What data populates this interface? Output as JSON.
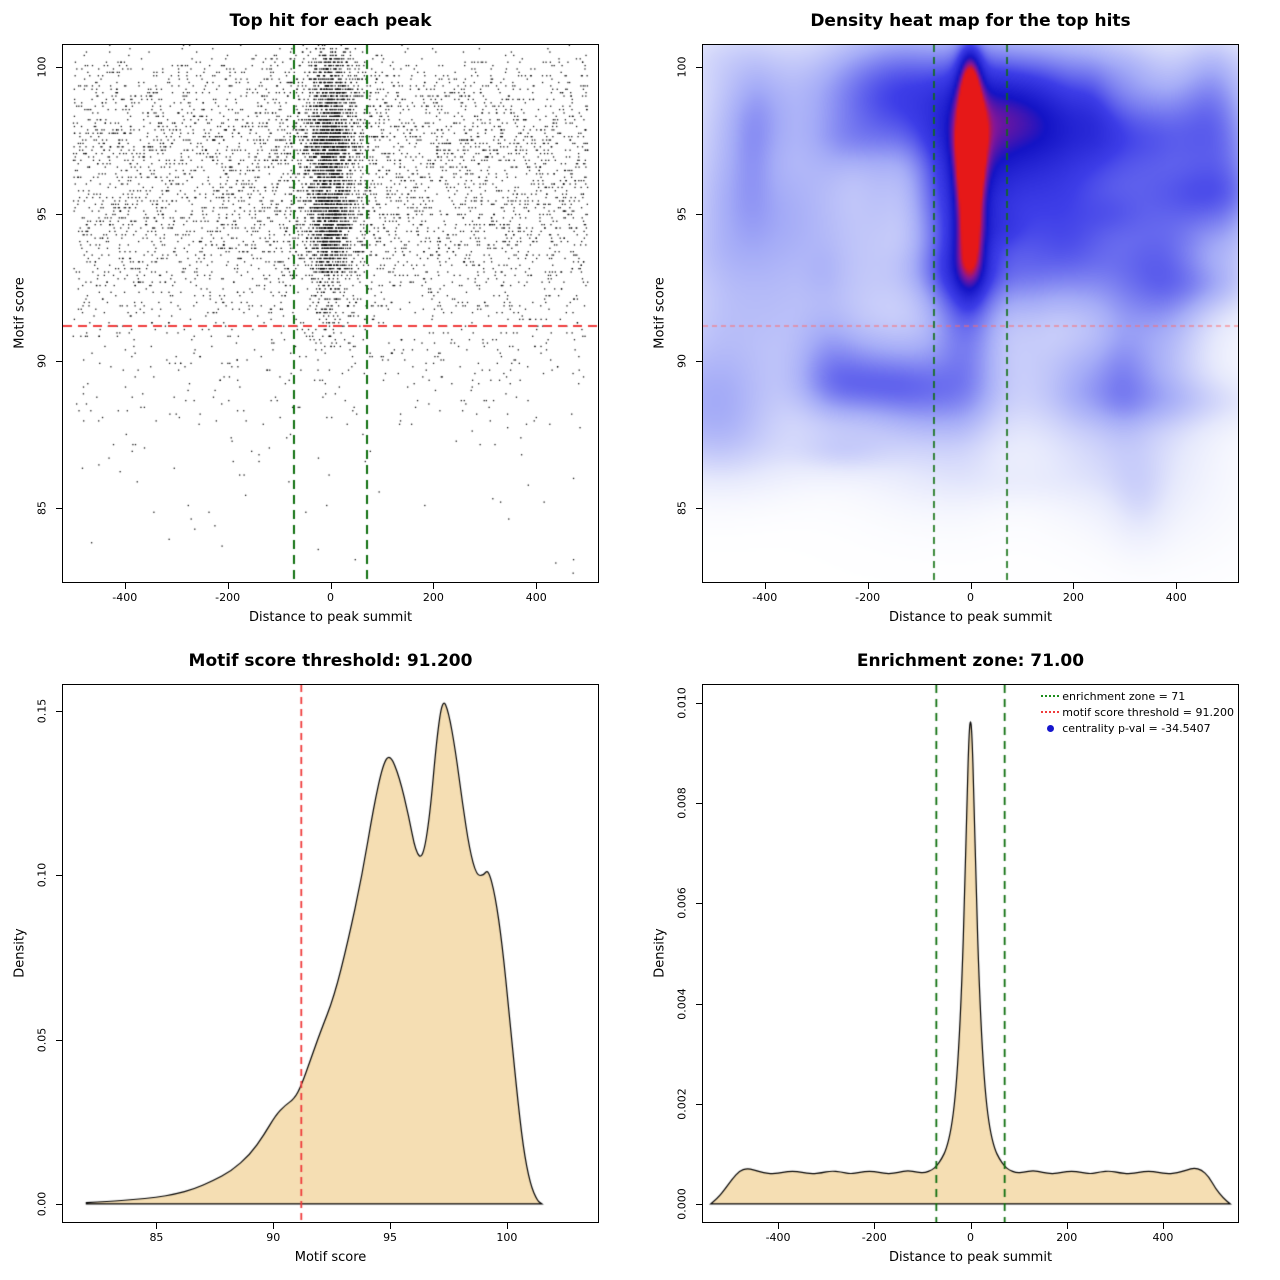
{
  "figure": {
    "background": "#ffffff"
  },
  "chart_data": [
    {
      "type": "scatter",
      "title": "Top hit for each peak",
      "xlabel": "Distance to peak summit",
      "ylabel": "Motif score",
      "xlim": [
        -520,
        520
      ],
      "ylim": [
        82.5,
        100.75
      ],
      "xticks": {
        "values": [
          -400,
          -200,
          0,
          200,
          400
        ],
        "labels": [
          "-400",
          "-200",
          "0",
          "200",
          "400"
        ]
      },
      "yticks": {
        "values": [
          85,
          90,
          95,
          100
        ],
        "labels": [
          "85",
          "90",
          "95",
          "100"
        ]
      },
      "point_color": "#000000",
      "threshold": {
        "y": 91.2,
        "color": "#ef3b3b"
      },
      "enrichment_zone": {
        "x": [
          -71,
          71
        ],
        "color": "#0d6e0d"
      },
      "generation": {
        "seed": 1337,
        "n_background": 4600,
        "n_core": 2300,
        "n_mid": 750,
        "core_sd": 22,
        "mid_sd": 58,
        "x_range": [
          -500,
          500
        ],
        "y_quantum": 0.115
      }
    },
    {
      "type": "heatmap",
      "title": "Density heat map for the top hits",
      "xlabel": "Distance to peak summit",
      "ylabel": "Motif score",
      "xlim": [
        -520,
        520
      ],
      "ylim": [
        82.5,
        100.75
      ],
      "xticks": {
        "values": [
          -400,
          -200,
          0,
          200,
          400
        ],
        "labels": [
          "-400",
          "-200",
          "0",
          "200",
          "400"
        ]
      },
      "yticks": {
        "values": [
          85,
          90,
          95,
          100
        ],
        "labels": [
          "85",
          "90",
          "95",
          "100"
        ]
      },
      "threshold": {
        "y": 91.2,
        "color": "#ff6b6b"
      },
      "enrichment_zone": {
        "x": [
          -71,
          71
        ],
        "color": "#0d6e0d"
      },
      "hotspots": [
        {
          "x": 0,
          "y": 97.3,
          "sx": 19,
          "sy": 1.05,
          "amp": 0.88
        },
        {
          "x": 0,
          "y": 98.9,
          "sx": 16,
          "sy": 0.85,
          "amp": 0.46
        },
        {
          "x": 0,
          "y": 99.9,
          "sx": 15,
          "sy": 0.7,
          "amp": 0.4
        },
        {
          "x": 0,
          "y": 96.0,
          "sx": 17,
          "sy": 0.9,
          "amp": 0.45
        },
        {
          "x": 0,
          "y": 94.7,
          "sx": 19,
          "sy": 1.0,
          "amp": 0.45
        },
        {
          "x": 0,
          "y": 93.5,
          "sx": 20,
          "sy": 0.9,
          "amp": 0.4
        },
        {
          "x": 0,
          "y": 96.5,
          "sx": 48,
          "sy": 2.9,
          "amp": 0.24
        },
        {
          "x": 0,
          "y": 91.8,
          "sx": 45,
          "sy": 2.0,
          "amp": 0.16
        },
        {
          "x": 0,
          "y": 89.6,
          "sx": 50,
          "sy": 2.3,
          "amp": 0.09
        }
      ],
      "noise": {
        "seed": 99,
        "count": 140
      },
      "colormap": [
        [
          0,
          [
            255,
            255,
            255
          ]
        ],
        [
          0.12,
          [
            230,
            233,
            252
          ]
        ],
        [
          0.35,
          [
            165,
            172,
            247
          ]
        ],
        [
          0.65,
          [
            62,
            62,
            232
          ]
        ],
        [
          0.95,
          [
            20,
            20,
            198
          ]
        ],
        [
          1.15,
          [
            135,
            22,
            150
          ]
        ],
        [
          1.3,
          [
            230,
            24,
            24
          ]
        ]
      ]
    },
    {
      "type": "area",
      "title": "Motif score threshold: 91.200",
      "xlabel": "Motif score",
      "ylabel": "Density",
      "xlim": [
        81,
        103.9
      ],
      "ylim": [
        -0.0055,
        0.158
      ],
      "xticks": {
        "values": [
          85,
          90,
          95,
          100
        ],
        "labels": [
          "85",
          "90",
          "95",
          "100"
        ]
      },
      "yticks": {
        "values": [
          0,
          0.05,
          0.1,
          0.15
        ],
        "labels": [
          "0.00",
          "0.05",
          "0.10",
          "0.15"
        ]
      },
      "fill": "#f5deb3",
      "stroke": "#000000",
      "vline": {
        "x": 91.2,
        "color": "#ef3b3b"
      },
      "points": [
        [
          82.0,
          0.0004
        ],
        [
          83.0,
          0.0008
        ],
        [
          84.0,
          0.0013
        ],
        [
          85.0,
          0.002
        ],
        [
          85.8,
          0.003
        ],
        [
          86.6,
          0.0045
        ],
        [
          87.4,
          0.007
        ],
        [
          88.2,
          0.01
        ],
        [
          89.0,
          0.015
        ],
        [
          89.6,
          0.021
        ],
        [
          90.1,
          0.027
        ],
        [
          90.5,
          0.03
        ],
        [
          90.9,
          0.032
        ],
        [
          91.2,
          0.036
        ],
        [
          91.6,
          0.044
        ],
        [
          92.0,
          0.052
        ],
        [
          92.6,
          0.063
        ],
        [
          93.2,
          0.08
        ],
        [
          93.8,
          0.1
        ],
        [
          94.3,
          0.121
        ],
        [
          94.7,
          0.134
        ],
        [
          95.0,
          0.137
        ],
        [
          95.4,
          0.13
        ],
        [
          95.8,
          0.118
        ],
        [
          96.1,
          0.107
        ],
        [
          96.4,
          0.105
        ],
        [
          96.7,
          0.118
        ],
        [
          97.0,
          0.142
        ],
        [
          97.25,
          0.154
        ],
        [
          97.5,
          0.15
        ],
        [
          97.8,
          0.138
        ],
        [
          98.1,
          0.122
        ],
        [
          98.4,
          0.108
        ],
        [
          98.7,
          0.1
        ],
        [
          99.0,
          0.1
        ],
        [
          99.2,
          0.102
        ],
        [
          99.5,
          0.094
        ],
        [
          99.8,
          0.079
        ],
        [
          100.1,
          0.058
        ],
        [
          100.4,
          0.036
        ],
        [
          100.7,
          0.017
        ],
        [
          101.0,
          0.006
        ],
        [
          101.3,
          0.001
        ],
        [
          101.5,
          0.0
        ]
      ]
    },
    {
      "type": "area",
      "title": "Enrichment zone: 71.00",
      "xlabel": "Distance to peak summit",
      "ylabel": "Density",
      "xlim": [
        -556,
        556
      ],
      "ylim": [
        -0.00036,
        0.01036
      ],
      "xticks": {
        "values": [
          -400,
          -200,
          0,
          200,
          400
        ],
        "labels": [
          "-400",
          "-200",
          "0",
          "200",
          "400"
        ]
      },
      "yticks": {
        "values": [
          0,
          0.002,
          0.004,
          0.006,
          0.008,
          0.01
        ],
        "labels": [
          "0.000",
          "0.002",
          "0.004",
          "0.006",
          "0.008",
          "0.010"
        ]
      },
      "fill": "#f5deb3",
      "stroke": "#000000",
      "vlines": {
        "x": [
          -71,
          71
        ],
        "color": "#0d6e0d"
      },
      "legend": [
        {
          "symbol": "dotted-line",
          "color": "#1a8c1a",
          "label": "enrichment zone = 71"
        },
        {
          "symbol": "dotted-line",
          "color": "#ef3b3b",
          "label": "motif score threshold = 91.200"
        },
        {
          "symbol": "point",
          "color": "#1616cd",
          "label": "centrality p-val = -34.5407"
        }
      ],
      "points": [
        [
          -540,
          0.0
        ],
        [
          -525,
          0.00012
        ],
        [
          -510,
          0.0003
        ],
        [
          -495,
          0.0005
        ],
        [
          -480,
          0.00066
        ],
        [
          -465,
          0.00071
        ],
        [
          -450,
          0.00068
        ],
        [
          -430,
          0.00062
        ],
        [
          -410,
          0.0006
        ],
        [
          -390,
          0.00063
        ],
        [
          -370,
          0.00066
        ],
        [
          -350,
          0.00063
        ],
        [
          -330,
          0.0006
        ],
        [
          -310,
          0.00062
        ],
        [
          -290,
          0.00066
        ],
        [
          -270,
          0.00064
        ],
        [
          -250,
          0.0006
        ],
        [
          -230,
          0.00063
        ],
        [
          -210,
          0.00066
        ],
        [
          -190,
          0.00063
        ],
        [
          -170,
          0.0006
        ],
        [
          -150,
          0.00063
        ],
        [
          -130,
          0.00067
        ],
        [
          -110,
          0.00063
        ],
        [
          -95,
          0.00062
        ],
        [
          -80,
          0.00068
        ],
        [
          -71,
          0.00075
        ],
        [
          -60,
          0.0009
        ],
        [
          -50,
          0.0011
        ],
        [
          -40,
          0.0015
        ],
        [
          -32,
          0.0021
        ],
        [
          -25,
          0.003
        ],
        [
          -18,
          0.0044
        ],
        [
          -12,
          0.0062
        ],
        [
          -7,
          0.0082
        ],
        [
          -3,
          0.0094
        ],
        [
          0,
          0.0097
        ],
        [
          3,
          0.0094
        ],
        [
          7,
          0.0082
        ],
        [
          12,
          0.0062
        ],
        [
          18,
          0.0044
        ],
        [
          25,
          0.003
        ],
        [
          32,
          0.0021
        ],
        [
          40,
          0.0015
        ],
        [
          50,
          0.0011
        ],
        [
          60,
          0.0009
        ],
        [
          71,
          0.00075
        ],
        [
          80,
          0.00068
        ],
        [
          95,
          0.00062
        ],
        [
          110,
          0.00063
        ],
        [
          130,
          0.00067
        ],
        [
          150,
          0.00063
        ],
        [
          170,
          0.0006
        ],
        [
          190,
          0.00063
        ],
        [
          210,
          0.00066
        ],
        [
          230,
          0.00063
        ],
        [
          250,
          0.0006
        ],
        [
          270,
          0.00064
        ],
        [
          290,
          0.00066
        ],
        [
          310,
          0.00062
        ],
        [
          330,
          0.0006
        ],
        [
          350,
          0.00063
        ],
        [
          370,
          0.00066
        ],
        [
          390,
          0.00063
        ],
        [
          410,
          0.0006
        ],
        [
          430,
          0.00062
        ],
        [
          450,
          0.00068
        ],
        [
          465,
          0.00072
        ],
        [
          480,
          0.00068
        ],
        [
          495,
          0.00055
        ],
        [
          510,
          0.0003
        ],
        [
          525,
          0.00012
        ],
        [
          540,
          0.0
        ]
      ]
    }
  ]
}
